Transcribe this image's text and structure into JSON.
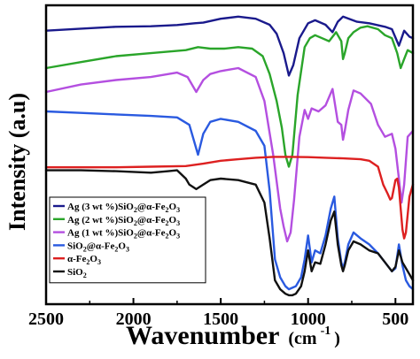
{
  "chart_data": {
    "type": "line",
    "title": "",
    "xlabel": "Wavenumber (cm⁻¹)",
    "xlabel_main": "Wavenumber",
    "xlabel_unit": "(cm",
    "xlabel_exp": "-1",
    "xlabel_close": ")",
    "ylabel": "Intensity (a.u)",
    "xlim": [
      2500,
      400
    ],
    "ylim": [
      0,
      100
    ],
    "x_reversed": true,
    "y_tick_labels_shown": false,
    "grid": false,
    "legend_position": "lower-left",
    "x_ticks": [
      2500,
      2000,
      1500,
      1000,
      500
    ],
    "x_tick_labels": [
      "2500",
      "2000",
      "1500",
      "1000",
      "500"
    ],
    "series": [
      {
        "name": "Ag (3 wt %)SiO2@α-Fe2O3",
        "label_parts": [
          "Ag (3 wt %)SiO",
          "2",
          "@α-Fe",
          "2",
          "O",
          "3"
        ],
        "color": "#1a1a8c",
        "x": [
          2500,
          2300,
          2100,
          1900,
          1750,
          1650,
          1600,
          1500,
          1400,
          1300,
          1220,
          1180,
          1140,
          1110,
          1085,
          1050,
          1000,
          960,
          900,
          860,
          830,
          800,
          780,
          720,
          650,
          560,
          520,
          480,
          465,
          450,
          420,
          400
        ],
        "y": [
          91.5,
          92.2,
          92.8,
          93.0,
          93.4,
          94.0,
          94.2,
          95.5,
          96.2,
          95.5,
          93.5,
          90.5,
          84.0,
          76.5,
          80.0,
          89.0,
          94.0,
          95.0,
          93.5,
          91.0,
          94.5,
          96.2,
          95.8,
          94.5,
          94.0,
          92.8,
          92.0,
          86.5,
          89.0,
          91.5,
          89.5,
          89.0
        ]
      },
      {
        "name": "Ag (2 wt %)SiO2@α-Fe2O3",
        "label_parts": [
          "Ag (2 wt %)SiO",
          "2",
          "@α-Fe",
          "2",
          "O",
          "3"
        ],
        "color": "#2aa52a",
        "x": [
          2500,
          2300,
          2100,
          1900,
          1700,
          1630,
          1560,
          1480,
          1400,
          1320,
          1260,
          1220,
          1180,
          1150,
          1130,
          1110,
          1090,
          1060,
          1020,
          990,
          960,
          920,
          880,
          840,
          810,
          800,
          790,
          770,
          740,
          700,
          660,
          600,
          560,
          520,
          490,
          470,
          450,
          430,
          400
        ],
        "y": [
          79.0,
          81.0,
          83.0,
          84.0,
          85.0,
          86.0,
          85.5,
          85.5,
          86.0,
          85.5,
          83.0,
          77.0,
          68.0,
          59.0,
          50.0,
          46.0,
          50.0,
          70.0,
          86.0,
          89.0,
          90.0,
          89.0,
          88.0,
          91.0,
          88.0,
          82.0,
          84.0,
          89.0,
          91.0,
          92.5,
          93.0,
          92.0,
          90.0,
          89.0,
          84.0,
          79.0,
          82.0,
          85.0,
          84.0
        ]
      },
      {
        "name": "Ag (1 wt %)SiO2@α-Fe2O3",
        "label_parts": [
          "Ag (1 wt %)SiO",
          "2",
          "@α-Fe",
          "2",
          "O",
          "3"
        ],
        "color": "#b44fe0",
        "x": [
          2500,
          2300,
          2100,
          1900,
          1750,
          1690,
          1640,
          1600,
          1560,
          1500,
          1450,
          1400,
          1300,
          1250,
          1200,
          1160,
          1140,
          1120,
          1100,
          1080,
          1050,
          1020,
          1000,
          980,
          940,
          900,
          860,
          830,
          810,
          800,
          790,
          770,
          740,
          700,
          640,
          600,
          560,
          520,
          500,
          480,
          465,
          450,
          430,
          400
        ],
        "y": [
          71.0,
          73.5,
          75.0,
          76.0,
          77.5,
          76.0,
          71.0,
          75.0,
          77.0,
          78.0,
          78.5,
          79.0,
          76.0,
          68.0,
          50.0,
          32.0,
          26.0,
          21.0,
          24.0,
          35.0,
          56.0,
          65.0,
          62.0,
          65.5,
          64.5,
          66.5,
          72.0,
          61.0,
          60.0,
          55.0,
          58.0,
          65.0,
          71.5,
          70.5,
          67.0,
          60.0,
          56.0,
          57.0,
          52.0,
          42.0,
          34.0,
          40.0,
          56.0,
          58.0
        ]
      },
      {
        "name": "SiO2@α-Fe2O3",
        "label_parts": [
          "SiO",
          "2",
          "@α-Fe",
          "2",
          "O",
          "3"
        ],
        "color": "#2a5ae0",
        "x": [
          2500,
          2300,
          2100,
          1900,
          1750,
          1680,
          1630,
          1600,
          1560,
          1500,
          1400,
          1300,
          1250,
          1220,
          1190,
          1160,
          1130,
          1110,
          1090,
          1070,
          1040,
          1020,
          1000,
          980,
          960,
          930,
          900,
          870,
          850,
          830,
          810,
          800,
          790,
          770,
          740,
          700,
          650,
          600,
          560,
          520,
          500,
          480,
          460,
          440,
          420,
          400
        ],
        "y": [
          64.5,
          64.0,
          63.5,
          63.0,
          62.5,
          60.0,
          50.0,
          57.0,
          61.0,
          62.0,
          61.0,
          58.0,
          53.0,
          38.0,
          15.0,
          9.0,
          6.0,
          5.0,
          5.5,
          6.0,
          9.0,
          15.0,
          23.0,
          14.0,
          18.0,
          17.0,
          23.0,
          32.0,
          36.0,
          22.0,
          14.0,
          12.0,
          14.0,
          20.0,
          24.0,
          22.0,
          20.0,
          17.0,
          14.0,
          11.0,
          12.0,
          20.0,
          13.0,
          8.0,
          6.0,
          5.0
        ]
      },
      {
        "name": "α-Fe2O3",
        "label_parts": [
          "α-Fe",
          "2",
          "O",
          "3"
        ],
        "color": "#dd2020",
        "x": [
          2500,
          2300,
          2100,
          1900,
          1700,
          1600,
          1500,
          1400,
          1300,
          1200,
          1100,
          1000,
          900,
          800,
          700,
          650,
          600,
          570,
          545,
          530,
          520,
          510,
          500,
          490,
          480,
          470,
          460,
          450,
          440,
          430,
          420,
          410,
          400
        ],
        "y": [
          45.8,
          45.8,
          45.8,
          46.0,
          46.2,
          47.0,
          48.0,
          48.5,
          49.0,
          49.3,
          49.3,
          49.2,
          49.0,
          48.8,
          48.5,
          48.0,
          46.0,
          40.0,
          37.0,
          35.0,
          35.5,
          38.5,
          41.5,
          42.0,
          39.0,
          32.0,
          25.0,
          22.0,
          24.0,
          30.0,
          36.0,
          38.0,
          40.0
        ]
      },
      {
        "name": "SiO2",
        "label_parts": [
          "SiO",
          "2"
        ],
        "color": "#111111",
        "x": [
          2500,
          2300,
          2100,
          1900,
          1800,
          1750,
          1700,
          1680,
          1640,
          1600,
          1560,
          1500,
          1400,
          1300,
          1250,
          1220,
          1190,
          1160,
          1130,
          1110,
          1090,
          1070,
          1040,
          1020,
          1000,
          980,
          960,
          930,
          900,
          870,
          850,
          830,
          810,
          800,
          790,
          770,
          740,
          700,
          650,
          600,
          560,
          520,
          500,
          480,
          460,
          440,
          420,
          400
        ],
        "y": [
          44.8,
          44.8,
          44.5,
          44.0,
          44.5,
          44.8,
          42.0,
          40.0,
          38.5,
          40.0,
          41.5,
          42.0,
          41.5,
          40.0,
          34.0,
          22.0,
          8.0,
          5.0,
          3.5,
          3.0,
          3.0,
          3.5,
          6.0,
          11.0,
          18.0,
          11.0,
          14.0,
          13.5,
          20.0,
          28.0,
          31.0,
          20.0,
          13.0,
          11.0,
          13.0,
          18.0,
          21.0,
          20.0,
          18.0,
          17.0,
          14.0,
          11.0,
          12.5,
          18.0,
          14.0,
          12.0,
          10.0,
          8.0
        ]
      }
    ]
  }
}
